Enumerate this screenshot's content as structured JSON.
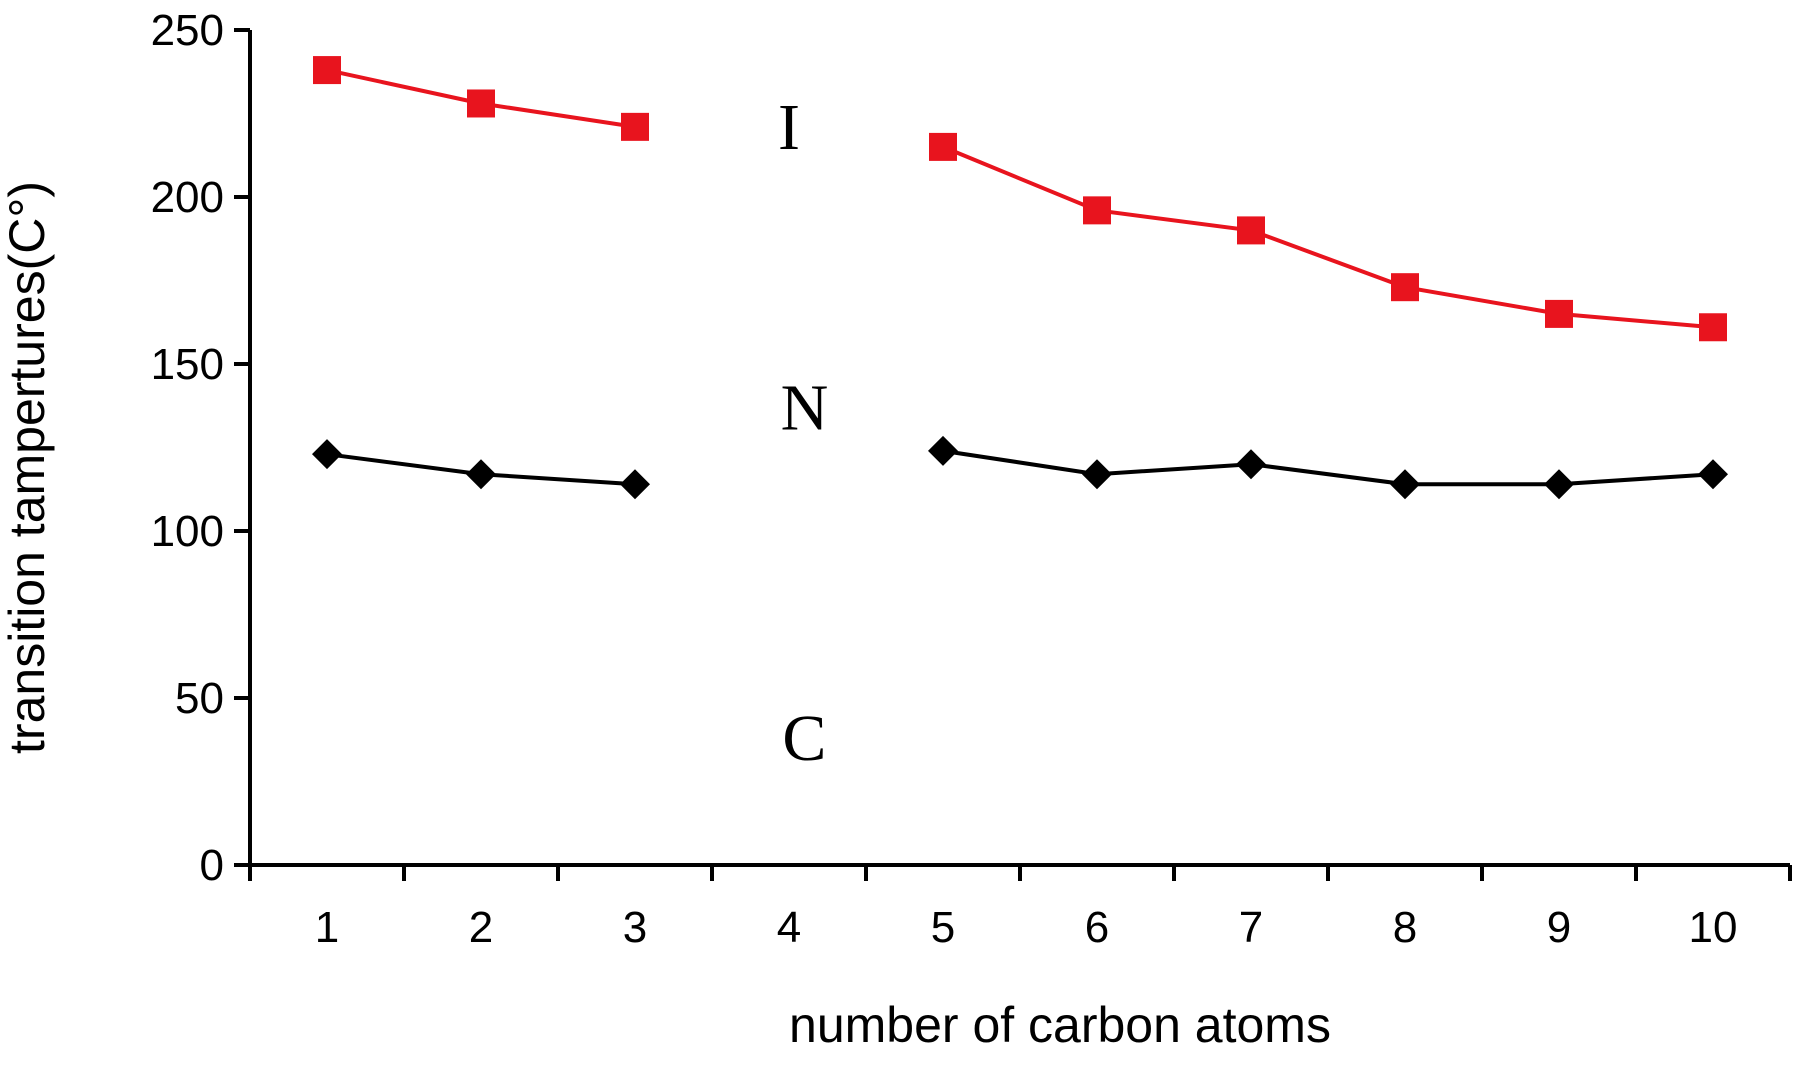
{
  "chart_data": {
    "type": "line",
    "title": "",
    "xlabel": "number of carbon atoms",
    "ylabel": "transition tampertures(C°)",
    "x": [
      1,
      2,
      3,
      4,
      5,
      6,
      7,
      8,
      9,
      10
    ],
    "x_tick_labels": [
      "1",
      "2",
      "3",
      "4",
      "5",
      "6",
      "7",
      "8",
      "9",
      "10"
    ],
    "y_tick_labels": [
      "0",
      "50",
      "100",
      "150",
      "200",
      "250"
    ],
    "ylim": [
      0,
      250
    ],
    "xlim": [
      0.5,
      10.5
    ],
    "grid": false,
    "legend": "none",
    "series": [
      {
        "color": "#e8141e",
        "marker": "square",
        "values": [
          238,
          228,
          221,
          null,
          215,
          196,
          190,
          173,
          165,
          161
        ]
      },
      {
        "color": "#000000",
        "marker": "diamond",
        "values": [
          123,
          117,
          114,
          null,
          124,
          117,
          120,
          114,
          114,
          117
        ]
      }
    ],
    "annotations": [
      {
        "text": "I",
        "x": 4,
        "y": 221
      },
      {
        "text": "N",
        "x": 4.1,
        "y": 137
      },
      {
        "text": "C",
        "x": 4.1,
        "y": 38
      }
    ]
  }
}
